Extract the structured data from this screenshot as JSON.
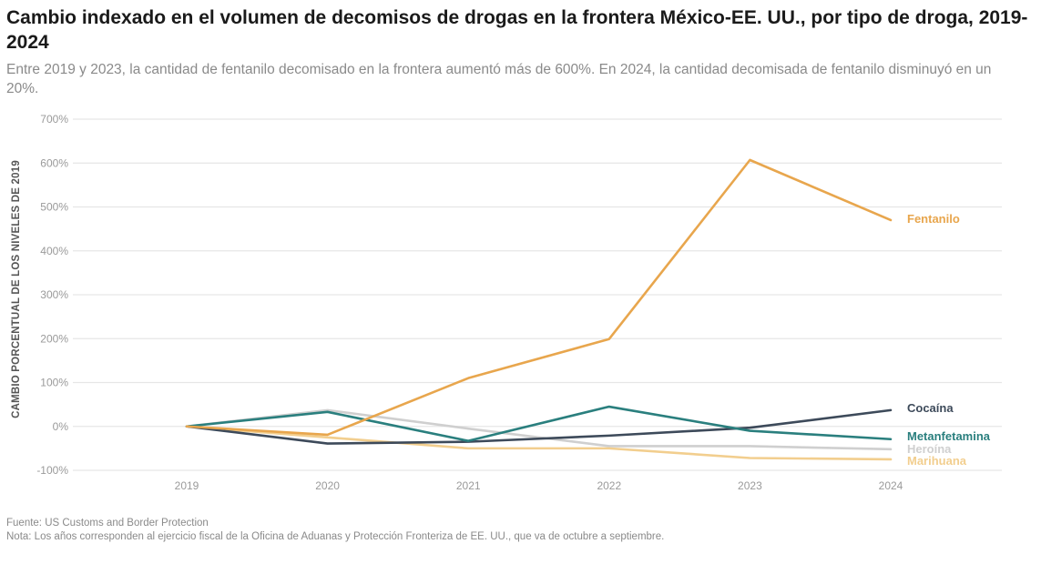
{
  "chart_data": {
    "type": "line",
    "title": "Cambio indexado en el volumen de decomisos de drogas en la frontera México-EE. UU., por tipo de droga, 2019-2024",
    "subtitle": "Entre 2019 y 2023, la cantidad de fentanilo decomisado en la frontera aumentó más de 600%. En 2024, la cantidad decomisada de fentanilo disminuyó en un 20%.",
    "xlabel": "",
    "ylabel": "CAMBIO PORCENTUAL DE LOS NIVELES DE 2019",
    "x": [
      "2019",
      "2020",
      "2021",
      "2022",
      "2023",
      "2024"
    ],
    "yticks": [
      "700%",
      "600%",
      "500%",
      "400%",
      "300%",
      "200%",
      "100%",
      "0%",
      "-100%"
    ],
    "ytick_values": [
      700,
      600,
      500,
      400,
      300,
      200,
      100,
      0,
      -100
    ],
    "ylim": [
      -100,
      700
    ],
    "grid": true,
    "legend": "direct-labels-right",
    "series": [
      {
        "name": "Heroína",
        "color": "#CFCFCF",
        "values": [
          0,
          37,
          -5,
          -45,
          -45,
          -52
        ]
      },
      {
        "name": "Marihuana",
        "color": "#F2CE8E",
        "values": [
          0,
          -25,
          -50,
          -50,
          -72,
          -75
        ]
      },
      {
        "name": "Cocaína",
        "color": "#3D4A5A",
        "values": [
          0,
          -39,
          -35,
          -21,
          -3,
          37
        ]
      },
      {
        "name": "Metanfetamina",
        "color": "#2A7F7E",
        "values": [
          0,
          33,
          -33,
          45,
          -10,
          -29
        ]
      },
      {
        "name": "Fentanilo",
        "color": "#E8A64D",
        "values": [
          0,
          -19,
          110,
          199,
          607,
          470
        ]
      }
    ]
  },
  "footer": {
    "source": "Fuente: US Customs and Border Protection",
    "note": "Nota: Los años corresponden al ejercicio fiscal de la Oficina de Aduanas y Protección Fronteriza de EE. UU., que va de octubre a septiembre."
  }
}
